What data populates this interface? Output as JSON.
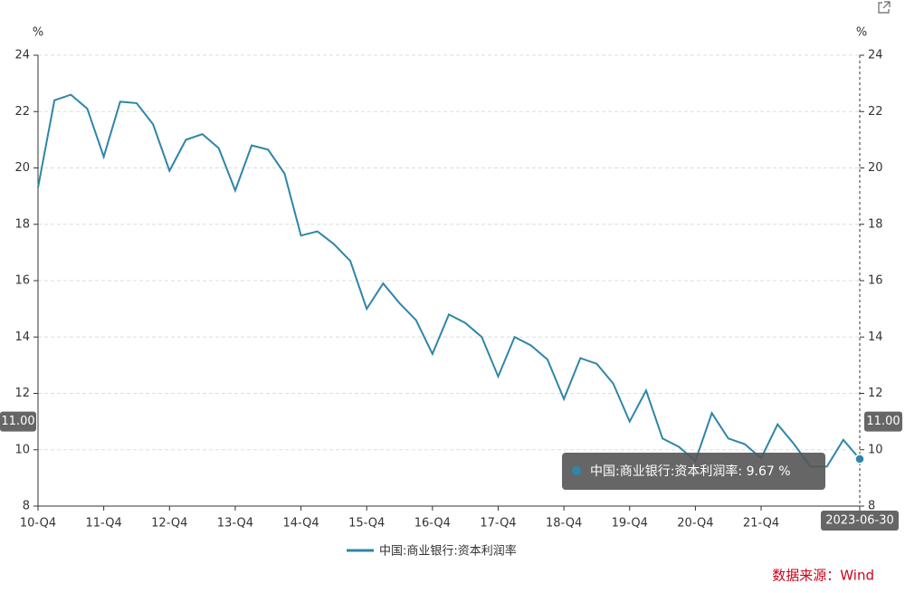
{
  "chart_data": {
    "type": "line",
    "y_unit": "%",
    "y2_unit": "%",
    "categories": [
      "10-Q4",
      null,
      null,
      null,
      "11-Q4",
      null,
      null,
      null,
      "12-Q4",
      null,
      null,
      null,
      "13-Q4",
      null,
      null,
      null,
      "14-Q4",
      null,
      null,
      null,
      "15-Q4",
      null,
      null,
      null,
      "16-Q4",
      null,
      null,
      null,
      "17-Q4",
      null,
      null,
      null,
      "18-Q4",
      null,
      null,
      null,
      "19-Q4",
      null,
      null,
      null,
      "20-Q4",
      null,
      null,
      null,
      "21-Q4",
      null,
      null,
      null,
      null,
      null,
      "2023-06-30"
    ],
    "series": [
      {
        "name": "中国:商业银行:资本利润率",
        "color": "#2f86a8",
        "values": [
          19.3,
          22.4,
          22.6,
          22.1,
          20.4,
          22.35,
          22.3,
          21.55,
          19.9,
          21.0,
          21.2,
          20.7,
          19.2,
          20.8,
          20.65,
          19.8,
          17.6,
          17.75,
          17.3,
          16.7,
          15.0,
          15.9,
          15.2,
          14.6,
          13.4,
          14.8,
          14.5,
          14.0,
          12.6,
          14.0,
          13.7,
          13.2,
          11.8,
          13.25,
          13.05,
          12.35,
          11.0,
          12.1,
          10.4,
          10.1,
          9.6,
          11.3,
          10.4,
          10.2,
          9.7,
          10.9,
          10.2,
          9.4,
          9.4,
          10.35,
          9.67
        ]
      }
    ],
    "ylim": [
      8,
      24
    ],
    "yticks": [
      8,
      10,
      12,
      14,
      16,
      18,
      20,
      22,
      24
    ],
    "y2lim": [
      8,
      24
    ],
    "y2ticks": [
      8,
      10,
      12,
      14,
      16,
      18,
      20,
      22,
      24
    ],
    "grid": true,
    "crosshair_y": {
      "value": 11,
      "label": "11.00"
    },
    "tooltip_text": "中国:商业银行:资本利润率: 9.67  %",
    "source": "数据来源：Wind"
  }
}
